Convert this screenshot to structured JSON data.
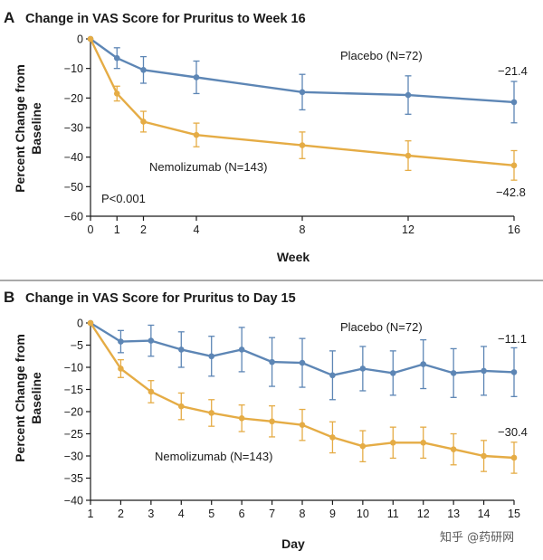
{
  "watermark": "知乎 @药研网",
  "colors": {
    "placebo": "#5d86b5",
    "nemolizumab": "#e5ac45",
    "axis": "#1a1a1a"
  },
  "chart_data": [
    {
      "type": "line",
      "panel": "A",
      "title": "Change in VAS Score for Pruritus to Week 16",
      "xlabel": "Week",
      "ylabel": [
        "Percent Change from",
        "Baseline"
      ],
      "xlim": [
        0,
        16
      ],
      "ylim": [
        -60,
        0
      ],
      "xticks": [
        0,
        1,
        2,
        4,
        8,
        12,
        16
      ],
      "yticks": [
        0,
        -10,
        -20,
        -30,
        -40,
        -50,
        -60
      ],
      "ytick_labels": [
        "0",
        "−10",
        "−20",
        "−30",
        "−40",
        "−50",
        "−60"
      ],
      "p_value": "P<0.001",
      "series": [
        {
          "name": "Placebo (N=72)",
          "color": "#5d86b5",
          "x": [
            0,
            1,
            2,
            4,
            8,
            12,
            16
          ],
          "values": [
            0,
            -6.5,
            -10.5,
            -13,
            -18,
            -19,
            -21.4
          ],
          "err": [
            0,
            3.5,
            4.5,
            5.5,
            6,
            6.5,
            7
          ],
          "end_label": "−21.4"
        },
        {
          "name": "Nemolizumab (N=143)",
          "color": "#e5ac45",
          "x": [
            0,
            1,
            2,
            4,
            8,
            12,
            16
          ],
          "values": [
            0,
            -18.5,
            -28,
            -32.5,
            -36,
            -39.5,
            -42.8
          ],
          "err": [
            0,
            2.5,
            3.5,
            4,
            4.5,
            5,
            5
          ]
        }
      ],
      "end_label_nemolizumab": "−42.8"
    },
    {
      "type": "line",
      "panel": "B",
      "title": "Change in VAS Score for Pruritus to Day 15",
      "xlabel": "Day",
      "ylabel": [
        "Percent Change from",
        "Baseline"
      ],
      "xlim": [
        1,
        15
      ],
      "ylim": [
        -40,
        0
      ],
      "xticks": [
        1,
        2,
        3,
        4,
        5,
        6,
        7,
        8,
        9,
        10,
        11,
        12,
        13,
        14,
        15
      ],
      "yticks": [
        0,
        -5,
        -10,
        -15,
        -20,
        -25,
        -30,
        -35,
        -40
      ],
      "ytick_labels": [
        "0",
        "−5",
        "−10",
        "−15",
        "−20",
        "−25",
        "−30",
        "−35",
        "−40"
      ],
      "series": [
        {
          "name": "Placebo (N=72)",
          "color": "#5d86b5",
          "x": [
            1,
            2,
            3,
            4,
            5,
            6,
            7,
            8,
            9,
            10,
            11,
            12,
            13,
            14,
            15
          ],
          "values": [
            0,
            -4.2,
            -4,
            -6,
            -7.5,
            -6,
            -8.8,
            -9,
            -11.8,
            -10.3,
            -11.3,
            -9.3,
            -11.3,
            -10.8,
            -11.1
          ],
          "err": [
            0,
            2.5,
            3.5,
            4,
            4.5,
            5,
            5.5,
            5.5,
            5.5,
            5,
            5,
            5.5,
            5.5,
            5.5,
            5.5
          ],
          "end_label": "−11.1"
        },
        {
          "name": "Nemolizumab (N=143)",
          "color": "#e5ac45",
          "x": [
            1,
            2,
            3,
            4,
            5,
            6,
            7,
            8,
            9,
            10,
            11,
            12,
            13,
            14,
            15
          ],
          "values": [
            0,
            -10.3,
            -15.5,
            -18.8,
            -20.3,
            -21.5,
            -22.2,
            -23,
            -25.8,
            -27.8,
            -27,
            -27,
            -28.5,
            -30,
            -30.4
          ],
          "err": [
            0,
            2,
            2.5,
            3,
            3,
            3,
            3.5,
            3.5,
            3.5,
            3.5,
            3.5,
            3.5,
            3.5,
            3.5,
            3.5
          ]
        }
      ],
      "end_label_nemolizumab": "−30.4"
    }
  ]
}
